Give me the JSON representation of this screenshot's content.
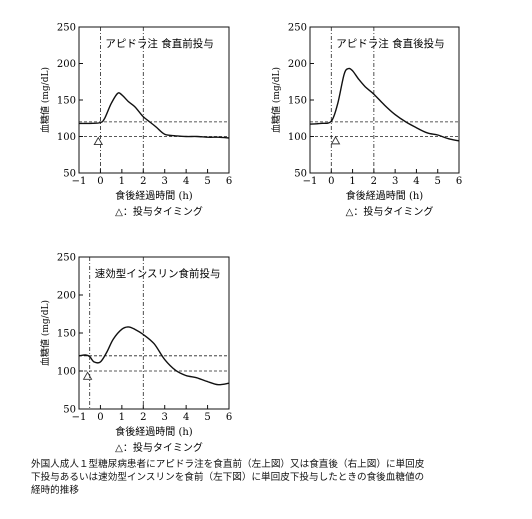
{
  "chart_data": [
    {
      "type": "line",
      "annotation": "アピドラ注 食直前投与",
      "xlabel": "食後経過時間 (h)",
      "ylabel": "血糖値 (mg/dL)",
      "xlim": [
        -1,
        6
      ],
      "ylim": [
        50,
        250
      ],
      "xticks": [
        "−1",
        "0",
        "1",
        "2",
        "3",
        "4",
        "5",
        "6"
      ],
      "yticks": [
        "50",
        "100",
        "150",
        "200",
        "250"
      ],
      "hlines": [
        120,
        100
      ],
      "vlines": [
        0,
        2
      ],
      "dose_marker": {
        "x": -0.1,
        "y": 93,
        "symbol": "△"
      },
      "timing_note": "△：投与タイミング",
      "series": [
        {
          "x": [
            -1,
            -0.5,
            0,
            0.2,
            0.5,
            0.8,
            1.0,
            1.3,
            1.6,
            1.8,
            2.0,
            2.3,
            2.6,
            3.0,
            3.5,
            4.0,
            4.5,
            5.0,
            5.5,
            6.0
          ],
          "y": [
            118,
            118,
            119,
            125,
            145,
            159,
            157,
            148,
            141,
            134,
            127,
            120,
            113,
            103,
            101,
            100,
            100,
            99,
            99,
            98
          ]
        }
      ]
    },
    {
      "type": "line",
      "annotation": "アピドラ注 食直後投与",
      "xlabel": "食後経過時間 (h)",
      "ylabel": "血糖値 (mg/dL)",
      "xlim": [
        -1,
        6
      ],
      "ylim": [
        50,
        250
      ],
      "xticks": [
        "−1",
        "0",
        "1",
        "2",
        "3",
        "4",
        "5",
        "6"
      ],
      "yticks": [
        "50",
        "100",
        "150",
        "200",
        "250"
      ],
      "hlines": [
        120,
        100
      ],
      "vlines": [
        0,
        2
      ],
      "dose_marker": {
        "x": 0.2,
        "y": 94,
        "symbol": "△"
      },
      "timing_note": "△：投与タイミング",
      "series": [
        {
          "x": [
            -1,
            -0.5,
            0,
            0.3,
            0.6,
            0.8,
            1.0,
            1.3,
            1.6,
            2.0,
            2.5,
            3.0,
            3.5,
            4.0,
            4.5,
            5.0,
            5.5,
            6.0
          ],
          "y": [
            117,
            118,
            121,
            145,
            185,
            193,
            190,
            178,
            168,
            158,
            143,
            130,
            120,
            112,
            105,
            102,
            97,
            94
          ]
        }
      ]
    },
    {
      "type": "line",
      "annotation": "速効型インスリン食前投与",
      "xlabel": "食後経過時間 (h)",
      "ylabel": "血糖値 (mg/dL)",
      "xlim": [
        -1,
        6
      ],
      "ylim": [
        50,
        250
      ],
      "xticks": [
        "−1",
        "0",
        "1",
        "2",
        "3",
        "4",
        "5",
        "6"
      ],
      "yticks": [
        "50",
        "100",
        "150",
        "200",
        "250"
      ],
      "hlines": [
        120,
        100
      ],
      "vlines": [
        -0.5,
        2
      ],
      "dose_marker": {
        "x": -0.6,
        "y": 93,
        "symbol": "△"
      },
      "timing_note": "△：投与タイミング",
      "series": [
        {
          "x": [
            -1,
            -0.7,
            -0.5,
            -0.3,
            0,
            0.3,
            0.6,
            1.0,
            1.3,
            1.6,
            2.0,
            2.5,
            3.0,
            3.5,
            4.0,
            4.5,
            5.0,
            5.5,
            6.0
          ],
          "y": [
            120,
            121,
            119,
            112,
            112,
            125,
            142,
            155,
            158,
            155,
            148,
            136,
            115,
            101,
            94,
            91,
            86,
            82,
            84
          ]
        }
      ]
    }
  ],
  "caption": [
    "外国人成人１型糖尿病患者にアピドラ注を食直前（左上図）又は食直後（右上図）に単回皮",
    "下投与あるいは速効型インスリンを食前（左下図）に単回皮下投与したときの食後血糖値の",
    "経時的推移"
  ]
}
